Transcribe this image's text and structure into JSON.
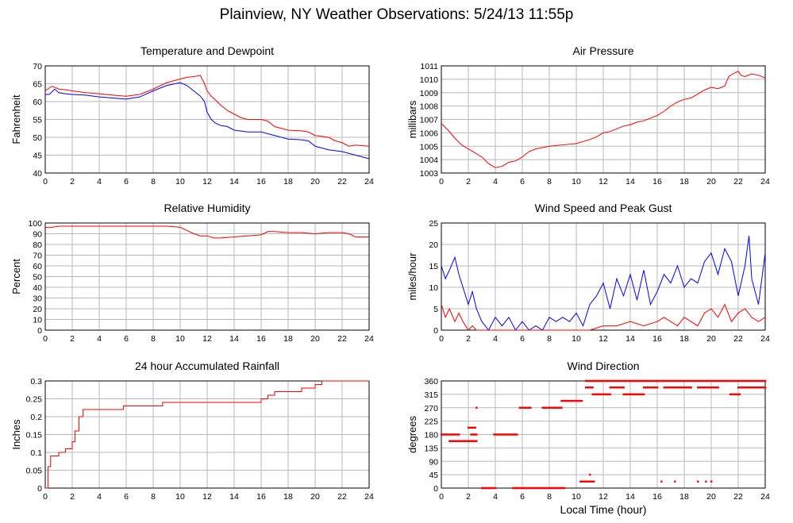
{
  "page": {
    "title": "Plainview, NY Weather Observations: 5/24/13 11:55p"
  },
  "x_axis_label": "Local Time (hour)",
  "chart_data": [
    {
      "id": "temp",
      "type": "line",
      "title": "Temperature and Dewpoint",
      "ylabel": "Fahrenheit",
      "xlim": [
        0,
        24
      ],
      "ylim": [
        40,
        70
      ],
      "yticks": [
        40,
        45,
        50,
        55,
        60,
        65,
        70
      ],
      "xticks": [
        0,
        2,
        4,
        6,
        8,
        10,
        12,
        14,
        16,
        18,
        20,
        22,
        24
      ],
      "grid": true,
      "series": [
        {
          "color": "#ff0000",
          "x": [
            0,
            0.5,
            1,
            1.5,
            2,
            3,
            4,
            5,
            6,
            7,
            8,
            9,
            10,
            10.5,
            11,
            11.5,
            11.8,
            12,
            12.3,
            12.6,
            13,
            13.5,
            14,
            14.5,
            15,
            16,
            16.5,
            17,
            17.5,
            18,
            19,
            19.5,
            20,
            21,
            21.5,
            22,
            22.5,
            23,
            24
          ],
          "y": [
            63,
            64.3,
            63.5,
            63.3,
            63,
            62.5,
            62.2,
            61.8,
            61.5,
            62,
            63.5,
            65.3,
            66.3,
            66.8,
            67,
            67.3,
            65,
            63,
            61.5,
            60.5,
            59,
            57.5,
            56.5,
            55.5,
            55,
            55,
            54.5,
            53,
            52.5,
            52,
            51.8,
            51.5,
            50.5,
            50,
            49,
            48.5,
            47.5,
            47.8,
            47.5
          ]
        },
        {
          "color": "#0000ff",
          "x": [
            0,
            0.3,
            0.7,
            1,
            1.5,
            2,
            3,
            4,
            5,
            6,
            7,
            8,
            9,
            10,
            10.5,
            11,
            11.5,
            11.8,
            12,
            12.3,
            12.6,
            13,
            13.5,
            14,
            15,
            16,
            17,
            18,
            19,
            19.5,
            20,
            21,
            22,
            22.5,
            23,
            24
          ],
          "y": [
            62,
            62,
            63.5,
            62.5,
            62.2,
            62,
            61.8,
            61.3,
            61,
            60.7,
            61.3,
            63,
            64.5,
            65.3,
            64.5,
            63,
            61.5,
            60,
            57,
            55,
            54,
            53.3,
            53,
            52,
            51.5,
            51.5,
            50.5,
            49.5,
            49.3,
            49,
            47.5,
            46.5,
            46,
            45.5,
            45,
            44
          ]
        }
      ]
    },
    {
      "id": "pressure",
      "type": "line",
      "title": "Air Pressure",
      "ylabel": "millibars",
      "xlim": [
        0,
        24
      ],
      "ylim": [
        1003,
        1011
      ],
      "yticks": [
        1003,
        1004,
        1005,
        1006,
        1007,
        1008,
        1009,
        1010,
        1011
      ],
      "xticks": [
        0,
        2,
        4,
        6,
        8,
        10,
        12,
        14,
        16,
        18,
        20,
        22,
        24
      ],
      "grid": true,
      "series": [
        {
          "color": "#ff0000",
          "x": [
            0,
            0.5,
            1,
            1.5,
            2,
            2.5,
            3,
            3.5,
            4,
            4.5,
            5,
            5.5,
            6,
            6.5,
            7,
            8,
            9,
            10,
            11,
            11.5,
            12,
            12.5,
            13,
            13.5,
            14,
            14.5,
            15,
            15.5,
            16,
            16.5,
            17,
            17.5,
            18,
            18.5,
            19,
            19.5,
            20,
            20.5,
            21,
            21.3,
            21.6,
            22,
            22.2,
            22.5,
            23,
            23.5,
            24
          ],
          "y": [
            1006.7,
            1006.2,
            1005.6,
            1005.1,
            1004.8,
            1004.5,
            1004.2,
            1003.7,
            1003.4,
            1003.5,
            1003.8,
            1003.9,
            1004.2,
            1004.6,
            1004.8,
            1005,
            1005.1,
            1005.2,
            1005.5,
            1005.7,
            1006,
            1006.1,
            1006.3,
            1006.5,
            1006.6,
            1006.8,
            1006.9,
            1007.1,
            1007.3,
            1007.6,
            1008,
            1008.3,
            1008.5,
            1008.6,
            1008.9,
            1009.2,
            1009.4,
            1009.3,
            1009.5,
            1010.2,
            1010.4,
            1010.6,
            1010.3,
            1010.2,
            1010.4,
            1010.3,
            1010.1
          ]
        }
      ]
    },
    {
      "id": "humidity",
      "type": "line",
      "title": "Relative Humidity",
      "ylabel": "Percent",
      "xlim": [
        0,
        24
      ],
      "ylim": [
        0,
        100
      ],
      "yticks": [
        0,
        10,
        20,
        30,
        40,
        50,
        60,
        70,
        80,
        90,
        100
      ],
      "xticks": [
        0,
        2,
        4,
        6,
        8,
        10,
        12,
        14,
        16,
        18,
        20,
        22,
        24
      ],
      "grid": true,
      "series": [
        {
          "color": "#ff0000",
          "x": [
            0,
            0.5,
            1,
            2,
            4,
            6,
            8,
            9,
            10,
            10.5,
            11,
            11.5,
            12,
            12.5,
            13,
            14,
            15,
            16,
            16.5,
            17,
            18,
            19,
            20,
            21,
            22,
            22.5,
            23,
            24
          ],
          "y": [
            96,
            96,
            97,
            97,
            97,
            97,
            97,
            97,
            96,
            93,
            90,
            88,
            88,
            86,
            86,
            87,
            88,
            89,
            92,
            92,
            91,
            91,
            90,
            91,
            91,
            90,
            87,
            87
          ]
        }
      ]
    },
    {
      "id": "wind",
      "type": "line",
      "title": "Wind Speed and Peak Gust",
      "ylabel": "miles/hour",
      "xlim": [
        0,
        24
      ],
      "ylim": [
        0,
        25
      ],
      "yticks": [
        0,
        5,
        10,
        15,
        20,
        25
      ],
      "xticks": [
        0,
        2,
        4,
        6,
        8,
        10,
        12,
        14,
        16,
        18,
        20,
        22,
        24
      ],
      "grid": true,
      "series": [
        {
          "color": "#0000ff",
          "x": [
            0,
            0.3,
            0.6,
            1,
            1.3,
            1.6,
            2,
            2.3,
            2.6,
            3,
            3.5,
            4,
            4.5,
            5,
            5.5,
            6,
            6.5,
            7,
            7.5,
            8,
            8.5,
            9,
            9.5,
            10,
            10.5,
            11,
            11.5,
            12,
            12.5,
            13,
            13.5,
            14,
            14.5,
            15,
            15.5,
            16,
            16.5,
            17,
            17.5,
            18,
            18.5,
            19,
            19.5,
            20,
            20.5,
            21,
            21.5,
            22,
            22.5,
            22.8,
            23,
            23.5,
            24
          ],
          "y": [
            15,
            12,
            14,
            17,
            13,
            10,
            6,
            9,
            5,
            2,
            0,
            3,
            1,
            3,
            0,
            2,
            0,
            1,
            0,
            3,
            2,
            3,
            2,
            4,
            1,
            6,
            8,
            11,
            5,
            12,
            8,
            13,
            7,
            14,
            6,
            9,
            13,
            11,
            15,
            10,
            12,
            11,
            16,
            18,
            13,
            19,
            16,
            8,
            15,
            22,
            12,
            6,
            18
          ]
        },
        {
          "color": "#ff0000",
          "x": [
            0,
            0.3,
            0.6,
            1,
            1.3,
            1.6,
            2,
            2.3,
            2.6,
            3,
            4,
            5,
            6,
            7,
            8,
            9,
            10,
            11,
            12,
            13,
            14,
            15,
            16,
            16.5,
            17,
            17.5,
            18,
            18.5,
            19,
            19.5,
            20,
            20.5,
            21,
            21.5,
            22,
            22.5,
            23,
            23.5,
            24
          ],
          "y": [
            6,
            3,
            5,
            2,
            4,
            2,
            0,
            1,
            0,
            0,
            0,
            0,
            0,
            0,
            0,
            0,
            0,
            0,
            1,
            1,
            2,
            1,
            2,
            3,
            2,
            1,
            3,
            2,
            1,
            4,
            5,
            3,
            6,
            2,
            4,
            5,
            3,
            2,
            3
          ]
        }
      ]
    },
    {
      "id": "rain",
      "type": "line",
      "title": "24 hour Accumulated Rainfall",
      "ylabel": "Inches",
      "xlim": [
        0,
        24
      ],
      "ylim": [
        0,
        0.3
      ],
      "yticks": [
        0,
        0.05,
        0.1,
        0.15,
        0.2,
        0.25,
        0.3
      ],
      "xticks": [
        0,
        2,
        4,
        6,
        8,
        10,
        12,
        14,
        16,
        18,
        20,
        22,
        24
      ],
      "grid": true,
      "series": [
        {
          "color": "#ff0000",
          "step": true,
          "x": [
            0,
            0.2,
            0.4,
            0.6,
            1,
            1.5,
            2,
            2.2,
            2.5,
            2.8,
            3,
            5.8,
            6,
            8.7,
            9,
            16,
            16.5,
            17,
            18,
            19,
            19.5,
            20,
            20.5,
            22,
            24
          ],
          "y": [
            0,
            0.06,
            0.09,
            0.09,
            0.1,
            0.11,
            0.13,
            0.16,
            0.2,
            0.22,
            0.22,
            0.23,
            0.23,
            0.24,
            0.24,
            0.25,
            0.26,
            0.27,
            0.27,
            0.28,
            0.28,
            0.29,
            0.3,
            0.3,
            0.3
          ]
        }
      ]
    },
    {
      "id": "direction",
      "type": "scatter",
      "title": "Wind Direction",
      "ylabel": "degrees",
      "xlabel": "Local Time (hour)",
      "xlim": [
        0,
        24
      ],
      "ylim": [
        0,
        360
      ],
      "yticks": [
        0,
        45,
        90,
        135,
        180,
        225,
        270,
        315,
        360
      ],
      "xticks": [
        0,
        2,
        4,
        6,
        8,
        10,
        12,
        14,
        16,
        18,
        20,
        22,
        24
      ],
      "grid": true,
      "series": [
        {
          "color": "#ff0000",
          "segments": [
            [
              0,
              1.3,
              180
            ],
            [
              0.6,
              2.1,
              158
            ],
            [
              1.6,
              2.6,
              158
            ],
            [
              2,
              2.5,
              203
            ],
            [
              2.2,
              2.6,
              180
            ],
            [
              3,
              4,
              0
            ],
            [
              3.9,
              5.6,
              180
            ],
            [
              5.3,
              9.1,
              0
            ],
            [
              5.8,
              6.6,
              270
            ],
            [
              7.5,
              8.9,
              270
            ],
            [
              8.9,
              10.4,
              293
            ],
            [
              10.3,
              10.8,
              22
            ],
            [
              10.8,
              11.3,
              22
            ],
            [
              10.7,
              11.2,
              338
            ],
            [
              10.7,
              16,
              360
            ],
            [
              11.2,
              12.5,
              315
            ],
            [
              12.5,
              13.5,
              338
            ],
            [
              13.5,
              15,
              315
            ],
            [
              15,
              16,
              338
            ],
            [
              16,
              24,
              360
            ],
            [
              16.5,
              18.5,
              338
            ],
            [
              19,
              20.5,
              338
            ],
            [
              21.4,
              22.1,
              315
            ],
            [
              22,
              24,
              338
            ]
          ],
          "points": [
            [
              2.6,
              270
            ],
            [
              11,
              45
            ],
            [
              16.3,
              22
            ],
            [
              17.3,
              22
            ],
            [
              19,
              22
            ],
            [
              19.6,
              22
            ],
            [
              20,
              22
            ],
            [
              18.2,
              338
            ],
            [
              17.6,
              338
            ]
          ]
        }
      ]
    }
  ]
}
